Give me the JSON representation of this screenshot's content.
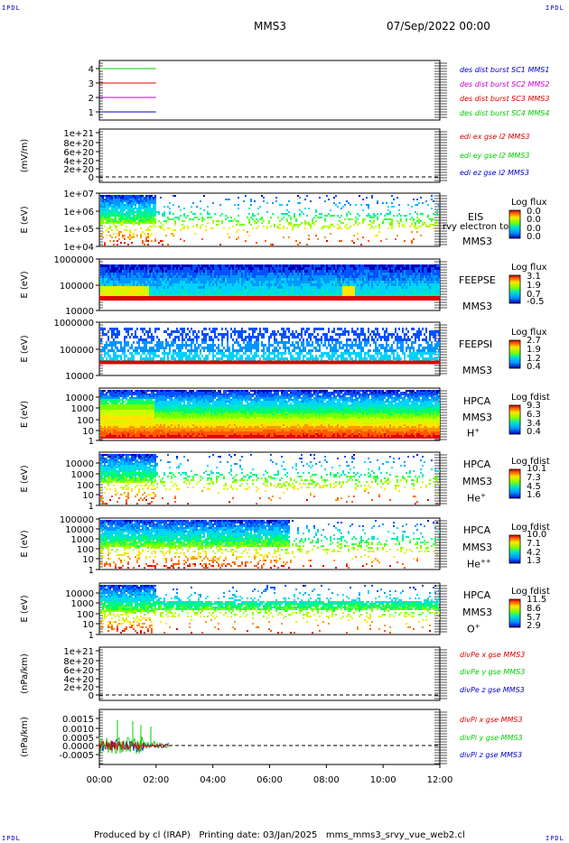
{
  "corner_label": "IPDL",
  "header": {
    "title": "MMS3",
    "date": "07/Sep/2022 00:00"
  },
  "footer": {
    "text": "Produced by cl (IRAP)   Printing date: 03/Jan/2025   mms_mms3_srvy_vue_web2.cl"
  },
  "colors": {
    "blue": "#0000cc",
    "magenta": "#cc00cc",
    "red": "#dd0000",
    "green": "#00cc00",
    "black": "#000000"
  },
  "chart_data": [
    {
      "type": "line",
      "panel": "burst",
      "yticks": [
        "4",
        "3",
        "2",
        "1"
      ],
      "x": [
        "00:00",
        "02:00"
      ],
      "series": [
        {
          "name": "des dist burst SC1 MMS1",
          "color": "blue",
          "y": [
            1,
            1
          ]
        },
        {
          "name": "des dist burst SC2 MMS2",
          "color": "magenta",
          "y": [
            2,
            2
          ]
        },
        {
          "name": "des dist burst SC3 MMS3",
          "color": "red",
          "y": [
            3,
            3
          ]
        },
        {
          "name": "des dist burst SC4 MMS4",
          "color": "green",
          "y": [
            4,
            4
          ]
        }
      ]
    },
    {
      "type": "line",
      "panel": "edi",
      "ylabel": "(mV/m)",
      "yticks": [
        "1e+21",
        "8e+20",
        "6e+20",
        "4e+20",
        "2e+20",
        "0"
      ],
      "series": [
        {
          "name": "edi ex gse l2 MMS3",
          "color": "red"
        },
        {
          "name": "edi ey gse l2 MMS3",
          "color": "green"
        },
        {
          "name": "edi ez gse l2 MMS3",
          "color": "blue"
        }
      ]
    },
    {
      "type": "heatmap",
      "panel": "eis",
      "ylabel": "E (eV)",
      "yticks": [
        "1e+07",
        "1e+06",
        "1e+05",
        "1e+04"
      ],
      "instrument": "EIS",
      "spacecraft": "MMS3",
      "overlay_text": "rvy electron to",
      "colorbar": {
        "title": "Log flux",
        "values": [
          "0.0",
          "0.0",
          "0.0",
          "0.0"
        ]
      }
    },
    {
      "type": "heatmap",
      "panel": "feepse",
      "ylabel": "E (eV)",
      "yticks": [
        "1000000",
        "100000",
        "10000"
      ],
      "instrument": "FEEPSE",
      "spacecraft": "MMS3",
      "colorbar": {
        "title": "Log flux",
        "values": [
          "3.1",
          "1.9",
          "0.7",
          "-0.5"
        ]
      }
    },
    {
      "type": "heatmap",
      "panel": "feepsi",
      "ylabel": "E (eV)",
      "yticks": [
        "1000000",
        "100000",
        "10000"
      ],
      "instrument": "FEEPSI",
      "spacecraft": "MMS3",
      "colorbar": {
        "title": "Log flux",
        "values": [
          "2.7",
          "1.9",
          "1.2",
          "0.4"
        ]
      }
    },
    {
      "type": "heatmap",
      "panel": "hpca_h",
      "ylabel": "E (eV)",
      "yticks": [
        "10000",
        "1000",
        "100",
        "10",
        "1"
      ],
      "instrument": "HPCA",
      "spacecraft": "MMS3",
      "species": "H",
      "charge": "+",
      "colorbar": {
        "title": "Log fdist",
        "values": [
          "9.3",
          "6.3",
          "3.4",
          "0.4"
        ]
      }
    },
    {
      "type": "heatmap",
      "panel": "hpca_he",
      "ylabel": "E (eV)",
      "yticks": [
        "10000",
        "1000",
        "100",
        "10",
        "1"
      ],
      "instrument": "HPCA",
      "spacecraft": "MMS3",
      "species": "He",
      "charge": "+",
      "colorbar": {
        "title": "Log fdist",
        "values": [
          "10.1",
          "7.3",
          "4.5",
          "1.6"
        ]
      }
    },
    {
      "type": "heatmap",
      "panel": "hpca_he2",
      "ylabel": "E (eV)",
      "yticks": [
        "100000",
        "10000",
        "1000",
        "100",
        "10",
        "1"
      ],
      "instrument": "HPCA",
      "spacecraft": "MMS3",
      "species": "He",
      "charge": "++",
      "colorbar": {
        "title": "Log fdist",
        "values": [
          "10.0",
          "7.1",
          "4.2",
          "1.3"
        ]
      }
    },
    {
      "type": "heatmap",
      "panel": "hpca_o",
      "ylabel": "E (eV)",
      "yticks": [
        "10000",
        "1000",
        "100",
        "10",
        "1"
      ],
      "instrument": "HPCA",
      "spacecraft": "MMS3",
      "species": "O",
      "charge": "+",
      "colorbar": {
        "title": "Log fdist",
        "values": [
          "11.5",
          "8.6",
          "5.7",
          "2.9"
        ]
      }
    },
    {
      "type": "line",
      "panel": "divpe",
      "ylabel": "(nPa/km)",
      "yticks": [
        "1e+21",
        "8e+20",
        "6e+20",
        "4e+20",
        "2e+20",
        "0"
      ],
      "series": [
        {
          "name": "divPe x gse MMS3",
          "color": "red"
        },
        {
          "name": "divPe y gse MMS3",
          "color": "green"
        },
        {
          "name": "divPe z gse MMS3",
          "color": "blue"
        }
      ]
    },
    {
      "type": "line",
      "panel": "divpi",
      "ylabel": "(nPa/km)",
      "yticks": [
        "0.0015",
        "0.0010",
        "0.0005",
        "0.0000",
        "-0.0005"
      ],
      "series": [
        {
          "name": "divPi x gse MMS3",
          "color": "red"
        },
        {
          "name": "divPi y gse MMS3",
          "color": "green"
        },
        {
          "name": "divPi z gse MMS3",
          "color": "blue"
        }
      ]
    }
  ],
  "xaxis": {
    "ticks": [
      "00:00",
      "02:00",
      "04:00",
      "06:00",
      "08:00",
      "10:00",
      "12:00"
    ]
  }
}
